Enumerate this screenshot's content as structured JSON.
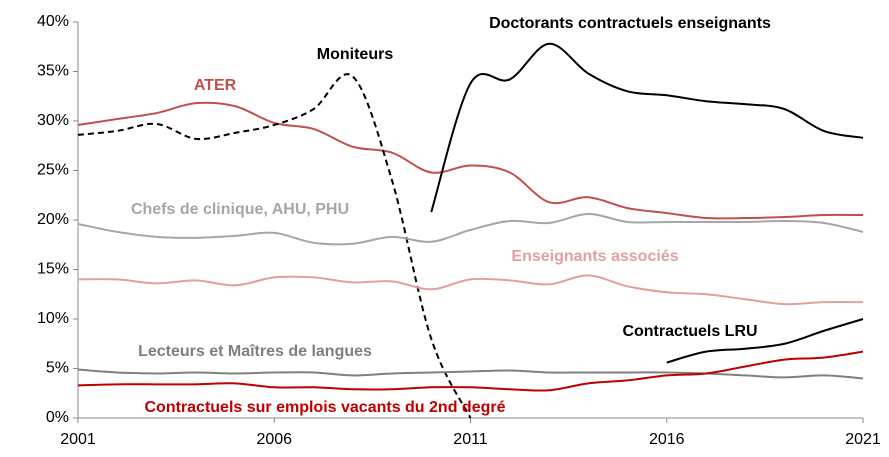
{
  "chart_data": {
    "type": "line",
    "x": [
      2001,
      2002,
      2003,
      2004,
      2005,
      2006,
      2007,
      2008,
      2009,
      2010,
      2011,
      2012,
      2013,
      2014,
      2015,
      2016,
      2017,
      2018,
      2019,
      2020,
      2021
    ],
    "xlim": [
      2001,
      2021
    ],
    "xticks": [
      2001,
      2006,
      2011,
      2016,
      2021
    ],
    "ylim": [
      0,
      40
    ],
    "yticks": [
      {
        "value": 0,
        "label": "0%"
      },
      {
        "value": 5,
        "label": "5%"
      },
      {
        "value": 10,
        "label": "10%"
      },
      {
        "value": 15,
        "label": "15%"
      },
      {
        "value": 20,
        "label": "20%"
      },
      {
        "value": 25,
        "label": "25%"
      },
      {
        "value": 30,
        "label": "30%"
      },
      {
        "value": 35,
        "label": "35%"
      },
      {
        "value": 40,
        "label": "40%"
      }
    ],
    "series": [
      {
        "name": "ATER",
        "color": "#c0504d",
        "values": [
          29.6,
          30.2,
          30.8,
          31.8,
          31.5,
          29.8,
          29.2,
          27.4,
          26.8,
          24.8,
          25.5,
          24.8,
          21.8,
          22.3,
          21.2,
          20.7,
          20.2,
          20.2,
          20.3,
          20.5,
          20.5
        ]
      },
      {
        "name": "Moniteurs",
        "color": "#000000",
        "style": "dashed",
        "values": [
          28.6,
          29.0,
          29.7,
          28.2,
          28.8,
          29.6,
          31.2,
          34.5,
          24,
          8,
          0,
          null,
          null,
          null,
          null,
          null,
          null,
          null,
          null,
          null,
          null
        ]
      },
      {
        "name": "Doctorants contractuels enseignants",
        "color": "#000000",
        "values": [
          null,
          null,
          null,
          null,
          null,
          null,
          null,
          null,
          null,
          20.8,
          33.8,
          34.2,
          37.8,
          34.8,
          33.0,
          32.6,
          32.0,
          31.7,
          31.2,
          29.0,
          28.3
        ]
      },
      {
        "name": "Chefs de clinique, AHU, PHU",
        "color": "#a6a6a6",
        "values": [
          19.6,
          18.8,
          18.3,
          18.2,
          18.4,
          18.7,
          17.7,
          17.6,
          18.3,
          17.8,
          19.0,
          19.9,
          19.7,
          20.6,
          19.8,
          19.8,
          19.8,
          19.8,
          19.9,
          19.7,
          18.8
        ]
      },
      {
        "name": "Enseignants associés",
        "color": "#e0a09e",
        "values": [
          14.0,
          14.0,
          13.6,
          13.9,
          13.4,
          14.2,
          14.2,
          13.7,
          13.8,
          13.0,
          14.0,
          13.9,
          13.5,
          14.4,
          13.3,
          12.7,
          12.5,
          12.0,
          11.5,
          11.7,
          11.7
        ]
      },
      {
        "name": "Contractuels LRU",
        "color": "#000000",
        "values": [
          null,
          null,
          null,
          null,
          null,
          null,
          null,
          null,
          null,
          null,
          null,
          null,
          null,
          null,
          null,
          5.6,
          6.7,
          7.0,
          7.5,
          8.8,
          10.0
        ]
      },
      {
        "name": "Lecteurs et Maîtres de langues",
        "color": "#7f7f7f",
        "values": [
          4.9,
          4.6,
          4.5,
          4.6,
          4.5,
          4.6,
          4.6,
          4.3,
          4.5,
          4.6,
          4.7,
          4.8,
          4.6,
          4.6,
          4.6,
          4.6,
          4.5,
          4.3,
          4.1,
          4.3,
          4.0
        ]
      },
      {
        "name": "Contractuels sur emplois vacants du 2nd degré",
        "color": "#c00000",
        "values": [
          3.3,
          3.4,
          3.4,
          3.4,
          3.5,
          3.1,
          3.1,
          2.9,
          2.9,
          3.1,
          3.1,
          2.9,
          2.8,
          3.5,
          3.8,
          4.3,
          4.5,
          5.2,
          5.9,
          6.1,
          6.7
        ]
      }
    ]
  }
}
